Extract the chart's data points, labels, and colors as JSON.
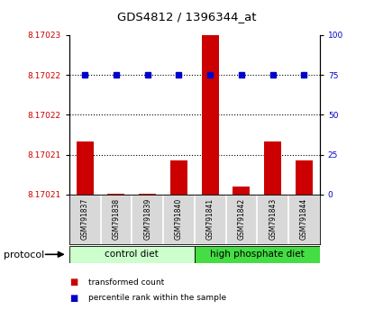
{
  "title": "GDS4812 / 1396344_at",
  "samples": [
    "GSM791837",
    "GSM791838",
    "GSM791839",
    "GSM791840",
    "GSM791841",
    "GSM791842",
    "GSM791843",
    "GSM791844"
  ],
  "red_vals": [
    8.170215,
    8.1702101,
    8.1702101,
    8.1702132,
    8.170226,
    8.1702108,
    8.170215,
    8.1702132
  ],
  "blue_vals": [
    75,
    75,
    75,
    75,
    75,
    75,
    75,
    75
  ],
  "ymin": 8.17021,
  "ymax": 8.170225,
  "right_yticks": [
    0,
    25,
    50,
    75,
    100
  ],
  "bar_color": "#cc0000",
  "dot_color": "#0000cc",
  "group1_label": "control diet",
  "group1_color": "#ccffcc",
  "group2_label": "high phosphate diet",
  "group2_color": "#44dd44",
  "protocol_label": "protocol",
  "legend_red": "transformed count",
  "legend_blue": "percentile rank within the sample"
}
